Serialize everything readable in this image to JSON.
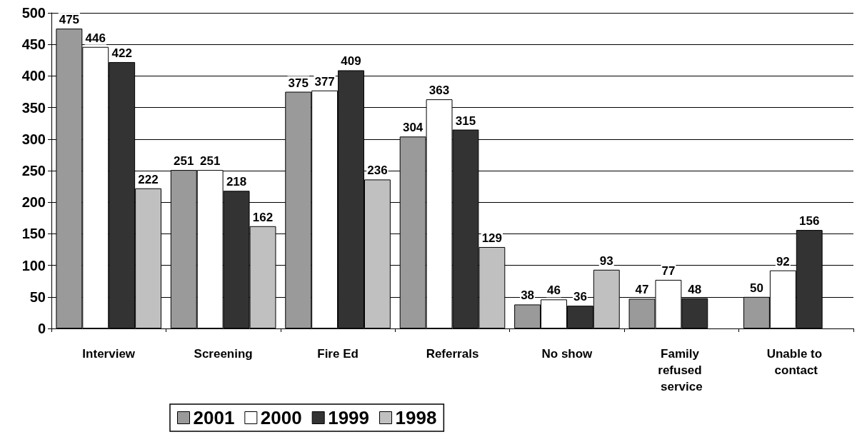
{
  "chart_data": {
    "type": "bar",
    "categories": [
      "Interview",
      "Screening",
      "Fire Ed",
      "Referrals",
      "No show",
      "Family refused service",
      "Unable to contact"
    ],
    "series": [
      {
        "name": "2001",
        "color": "#9a9a9a",
        "values": [
          475,
          251,
          375,
          304,
          38,
          47,
          50
        ]
      },
      {
        "name": "2000",
        "color": "#ffffff",
        "values": [
          446,
          251,
          377,
          363,
          46,
          77,
          92
        ]
      },
      {
        "name": "1999",
        "color": "#333333",
        "values": [
          422,
          218,
          409,
          315,
          36,
          48,
          156
        ]
      },
      {
        "name": "1998",
        "color": "#c0c0c0",
        "values": [
          222,
          162,
          236,
          129,
          93,
          null,
          null
        ]
      }
    ],
    "ylim": [
      0,
      500
    ],
    "yticks": [
      0,
      50,
      100,
      150,
      200,
      250,
      300,
      350,
      400,
      450,
      500
    ],
    "grid": "y",
    "legend": "bottom",
    "data_labels": true
  }
}
